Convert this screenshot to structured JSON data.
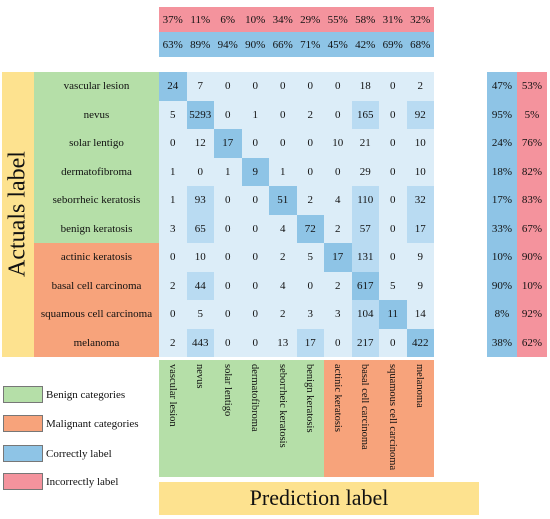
{
  "chart_data": {
    "type": "heatmap",
    "ylabel": "Actuals label",
    "xlabel": "Prediction label",
    "categories": [
      "vascular lesion",
      "nevus",
      "solar lentigo",
      "dermatofibroma",
      "seborrheic keratosis",
      "benign keratosis",
      "actinic keratosis",
      "basal cell carcinoma",
      "squamous cell carcinoma",
      "melanoma"
    ],
    "benign_count": 6,
    "matrix": [
      [
        24,
        7,
        0,
        0,
        0,
        0,
        0,
        18,
        0,
        2
      ],
      [
        5,
        5293,
        0,
        1,
        0,
        2,
        0,
        165,
        0,
        92
      ],
      [
        0,
        12,
        17,
        0,
        0,
        0,
        10,
        21,
        0,
        10
      ],
      [
        1,
        0,
        1,
        9,
        1,
        0,
        0,
        29,
        0,
        10
      ],
      [
        1,
        93,
        0,
        0,
        51,
        2,
        4,
        110,
        0,
        32
      ],
      [
        3,
        65,
        0,
        0,
        4,
        72,
        2,
        57,
        0,
        17
      ],
      [
        0,
        10,
        0,
        0,
        2,
        5,
        17,
        131,
        0,
        9
      ],
      [
        2,
        44,
        0,
        0,
        4,
        0,
        2,
        617,
        5,
        9
      ],
      [
        0,
        5,
        0,
        0,
        2,
        3,
        3,
        104,
        11,
        14
      ],
      [
        2,
        443,
        0,
        0,
        13,
        17,
        0,
        217,
        0,
        422
      ]
    ],
    "highlighted_cells": [
      [
        0,
        0
      ],
      [
        1,
        1
      ],
      [
        1,
        7
      ],
      [
        1,
        9
      ],
      [
        2,
        2
      ],
      [
        3,
        3
      ],
      [
        4,
        1
      ],
      [
        4,
        4
      ],
      [
        4,
        7
      ],
      [
        4,
        9
      ],
      [
        5,
        1
      ],
      [
        5,
        5
      ],
      [
        5,
        7
      ],
      [
        5,
        9
      ],
      [
        6,
        6
      ],
      [
        6,
        7
      ],
      [
        7,
        1
      ],
      [
        7,
        7
      ],
      [
        8,
        7
      ],
      [
        8,
        8
      ],
      [
        9,
        1
      ],
      [
        9,
        5
      ],
      [
        9,
        7
      ],
      [
        9,
        9
      ]
    ],
    "column_incorrect": [
      "37%",
      "11%",
      "6%",
      "10%",
      "34%",
      "29%",
      "55%",
      "58%",
      "31%",
      "32%"
    ],
    "column_correct": [
      "63%",
      "89%",
      "94%",
      "90%",
      "66%",
      "71%",
      "45%",
      "42%",
      "69%",
      "68%"
    ],
    "row_correct": [
      "47%",
      "95%",
      "24%",
      "18%",
      "17%",
      "33%",
      "10%",
      "90%",
      "8%",
      "38%"
    ],
    "row_incorrect": [
      "53%",
      "5%",
      "76%",
      "82%",
      "83%",
      "67%",
      "90%",
      "10%",
      "92%",
      "62%"
    ]
  },
  "legend": [
    {
      "label": "Benign categories",
      "color": "#b5dfa8"
    },
    {
      "label": "Malignant categories",
      "color": "#f7a37b"
    },
    {
      "label": "Correctly label",
      "color": "#8ec4e6"
    },
    {
      "label": "Incorrectly label",
      "color": "#f4939d"
    }
  ],
  "colors": {
    "benign": "#b5dfa8",
    "malignant": "#f7a37b",
    "correct": "#8ec4e6",
    "incorrect": "#f4939d",
    "matrix_bg": "#dcedf8",
    "matrix_highlight": "#b9dbf2",
    "diagonal": "#8ec4e6",
    "label_strip": "#fde28f"
  }
}
